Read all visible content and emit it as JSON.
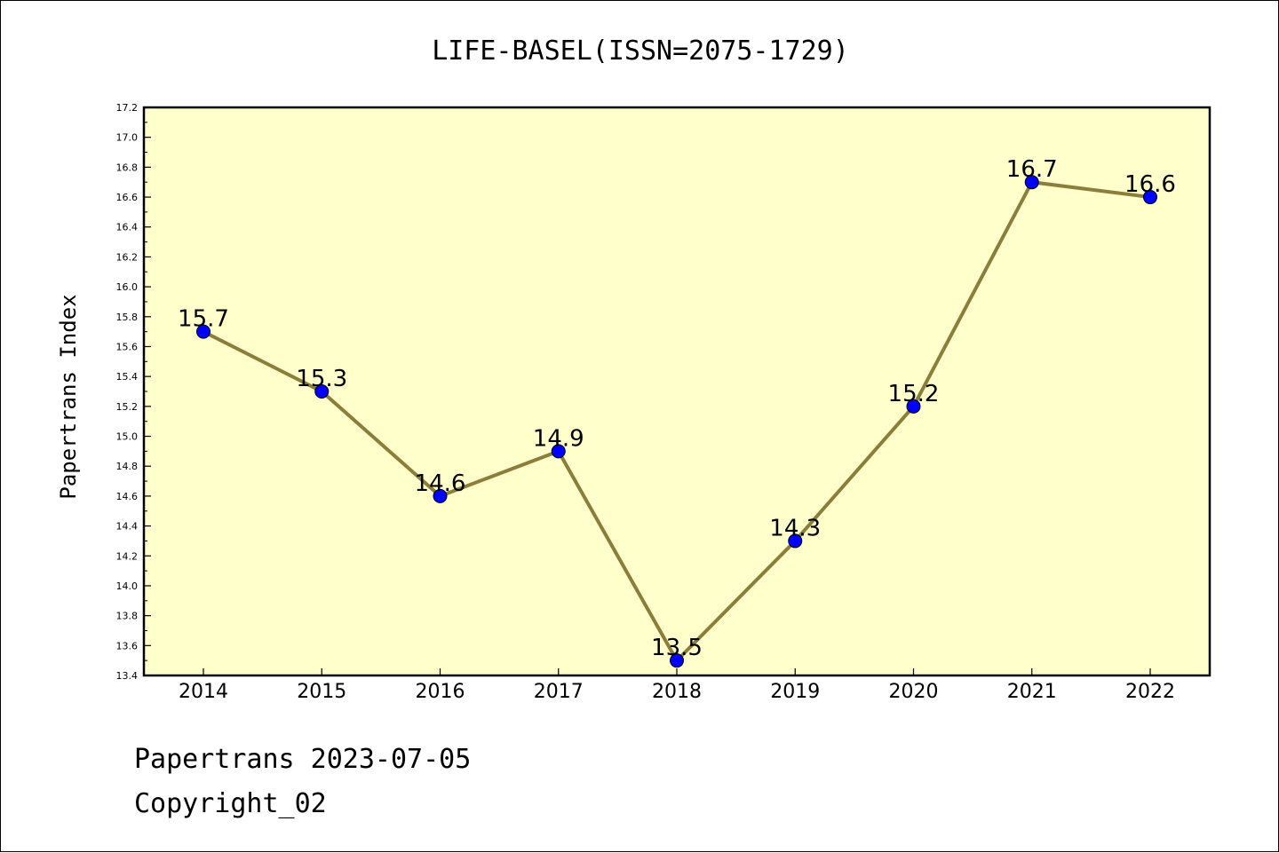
{
  "chart_data": {
    "type": "line",
    "title": "LIFE-BASEL(ISSN=2075-1729)",
    "xlabel": "",
    "ylabel": "Papertrans Index",
    "categories": [
      "2014",
      "2015",
      "2016",
      "2017",
      "2018",
      "2019",
      "2020",
      "2021",
      "2022"
    ],
    "values": [
      15.7,
      15.3,
      14.6,
      14.9,
      13.5,
      14.3,
      15.2,
      16.7,
      16.6
    ],
    "data_labels": [
      "15.7",
      "15.3",
      "14.6",
      "14.9",
      "13.5",
      "14.3",
      "15.2",
      "16.7",
      "16.6"
    ],
    "ylim": [
      13.4,
      17.2
    ],
    "yticks": [
      13.4,
      13.6,
      13.8,
      14.0,
      14.2,
      14.4,
      14.6,
      14.8,
      15.0,
      15.2,
      15.4,
      15.6,
      15.8,
      16.0,
      16.2,
      16.4,
      16.6,
      16.8,
      17.0,
      17.2
    ],
    "ytick_labels": [
      "13.4",
      "13.6",
      "13.8",
      "14.0",
      "14.2",
      "14.4",
      "14.6",
      "14.8",
      "15.0",
      "15.2",
      "15.4",
      "15.6",
      "15.8",
      "16.0",
      "16.2",
      "16.4",
      "16.6",
      "16.8",
      "17.0",
      "17.2"
    ],
    "grid": false,
    "legend": "none",
    "colors": {
      "plot_background": "#ffffcc",
      "line": "#8b7d3a",
      "marker": "#0000ff"
    }
  },
  "footer": {
    "line1": "Papertrans 2023-07-05",
    "line2": "Copyright_02"
  }
}
